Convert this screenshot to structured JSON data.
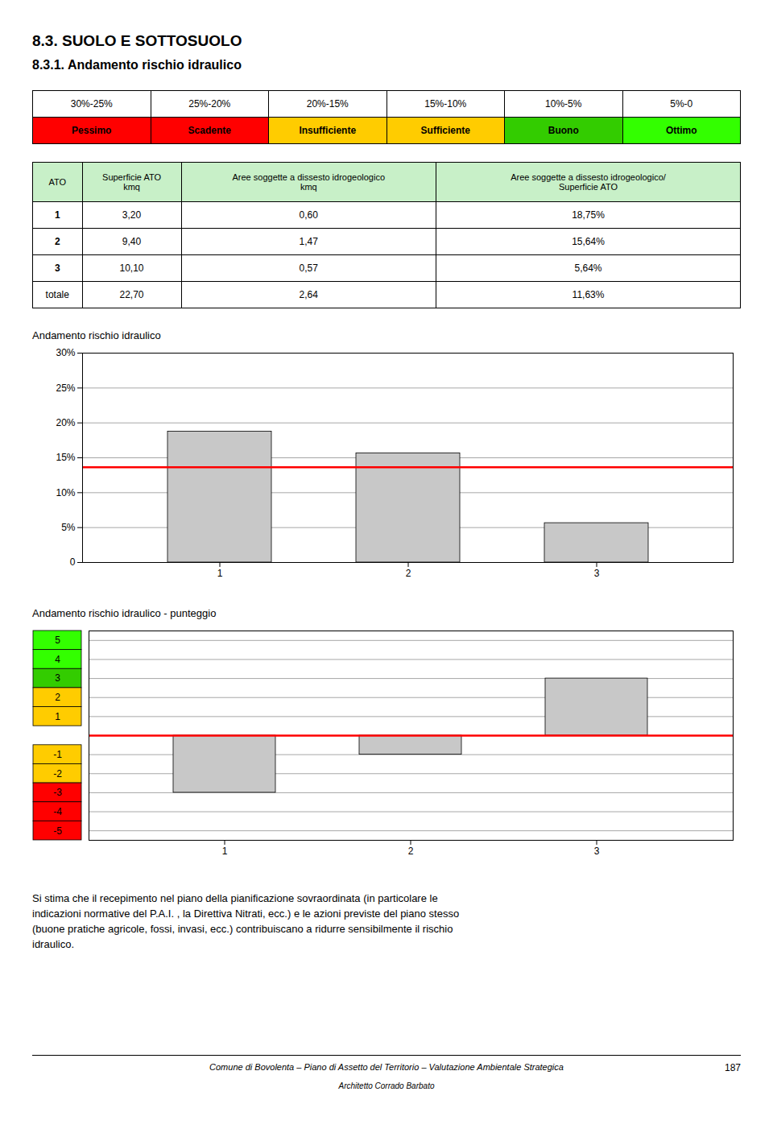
{
  "title": "8.3. SUOLO E SOTTOSUOLO",
  "subtitle": "8.3.1. Andamento rischio idraulico",
  "rating_scale": {
    "ranges": [
      "30%-25%",
      "25%-20%",
      "20%-15%",
      "15%-10%",
      "10%-5%",
      "5%-0"
    ],
    "labels": [
      "Pessimo",
      "Scadente",
      "Insufficiente",
      "Sufficiente",
      "Buono",
      "Ottimo"
    ],
    "colors": [
      "#ff0000",
      "#ff0000",
      "#ffcc00",
      "#ffcc00",
      "#33cc00",
      "#33ff00"
    ]
  },
  "table": {
    "header_color": "#c8f0c8",
    "headers": [
      "ATO",
      "Superficie ATO\nkmq",
      "Aree soggette a dissesto idrogeologico\nkmq",
      "Aree soggette a dissesto idrogeologico/\nSuperficie ATO"
    ],
    "rows": [
      [
        "1",
        "3,20",
        "0,60",
        "18,75%"
      ],
      [
        "2",
        "9,40",
        "1,47",
        "15,64%"
      ],
      [
        "3",
        "10,10",
        "0,57",
        "5,64%"
      ],
      [
        "totale",
        "22,70",
        "2,64",
        "11,63%"
      ]
    ]
  },
  "chart_data": [
    {
      "type": "bar",
      "title": "Andamento rischio idraulico",
      "categories": [
        "1",
        "2",
        "3"
      ],
      "values": [
        18.75,
        15.64,
        5.64
      ],
      "color": "#c8c8c8",
      "threshold": 13.63,
      "threshold_color": "#ff0000",
      "ylim": [
        0,
        30
      ],
      "yticks": [
        0,
        {
          "value": 5,
          "label": "5%"
        },
        {
          "value": 10,
          "label": "10%"
        },
        {
          "value": 15,
          "label": "15%"
        },
        {
          "value": 20,
          "label": "20%"
        },
        {
          "value": 25,
          "label": "25%"
        },
        {
          "value": 30,
          "label": "30%"
        }
      ],
      "grid": true
    },
    {
      "type": "bar",
      "title": "Andamento rischio idraulico - punteggio",
      "categories": [
        "1",
        "2",
        "3"
      ],
      "values": [
        -3,
        -1,
        3
      ],
      "color": "#c8c8c8",
      "threshold": 0,
      "threshold_color": "#ff0000",
      "ylim": [
        -5.5,
        5.5
      ],
      "yticks": [
        5,
        4,
        3,
        2,
        1,
        -1,
        -2,
        -3,
        -4,
        -5
      ],
      "ytick_colors": [
        "#33ff00",
        "#33ff00",
        "#33cc00",
        "#ffcc00",
        "#ffcc00",
        "#ffcc00",
        "#ffcc00",
        "#ff0000",
        "#ff0000",
        "#ff0000"
      ],
      "grid": true
    }
  ],
  "footer": {
    "text": "Si stima che il recepimento nel piano della pianificazione sovraordinata (in particolare le\nindicazioni normative del P.A.I. , la Direttiva Nitrati, ecc.) e le azioni previste del piano stesso\n(buone pratiche agricole, fossi, invasi, ecc.) contribuiscano a ridurre sensibilmente il rischio\nidraulico.",
    "line": "Comune di Bovolenta – Piano di Assetto del Territorio – Valutazione Ambientale Strategica",
    "author": "Architetto Corrado Barbato",
    "page": "187"
  }
}
